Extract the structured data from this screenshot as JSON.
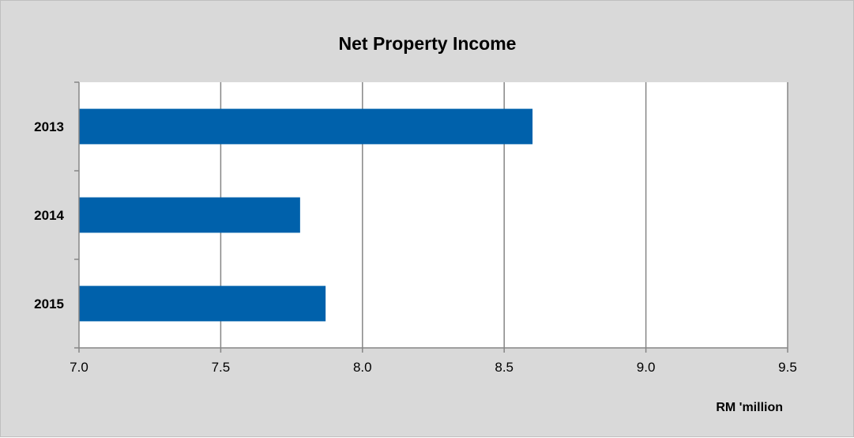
{
  "chart_data": {
    "type": "bar",
    "orientation": "horizontal",
    "title": "Net Property Income",
    "xlabel": "RM 'million",
    "ylabel": "",
    "categories": [
      "2013",
      "2014",
      "2015"
    ],
    "values": [
      8.6,
      7.78,
      7.87
    ],
    "xlim": [
      7.0,
      9.5
    ],
    "xticks": [
      "7.0",
      "7.5",
      "8.0",
      "8.5",
      "9.0",
      "9.5"
    ],
    "grid": "vertical",
    "legend": "none",
    "colors": {
      "bar": "#0061AB",
      "frame": "#D9D9D9",
      "plot_area": "#FFFFFF",
      "grid": "#868686"
    }
  }
}
